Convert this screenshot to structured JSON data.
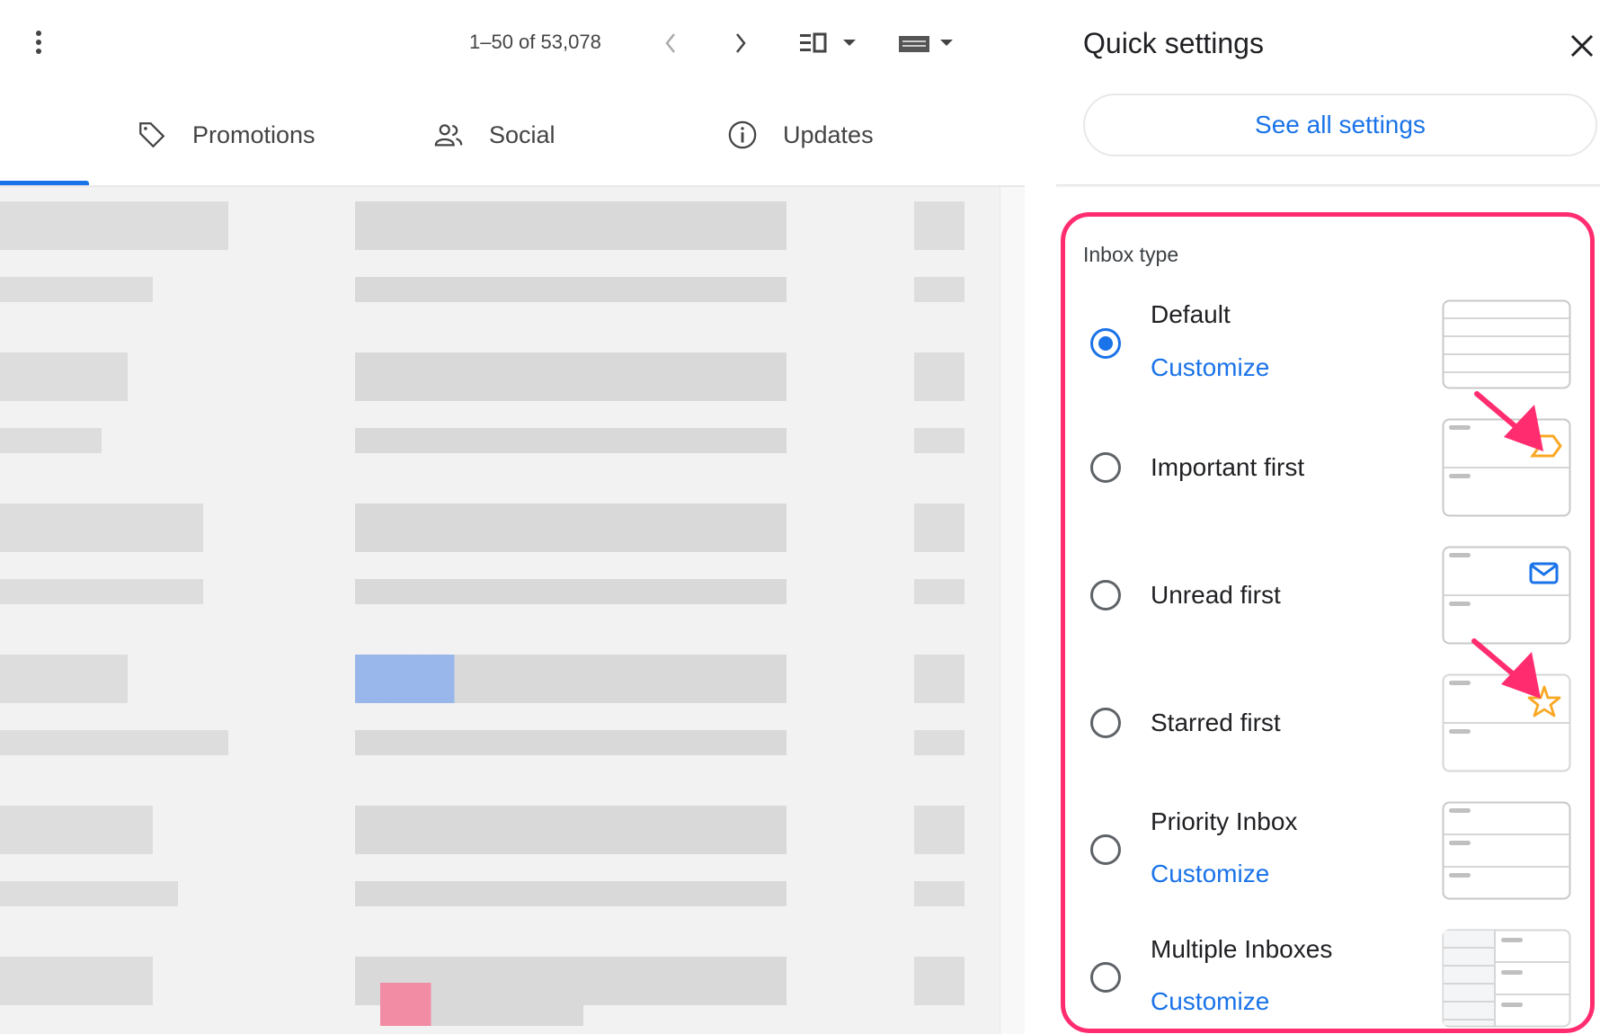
{
  "toolbar": {
    "pagination": "1–50 of 53,078",
    "icons": [
      "more-vert-icon",
      "chevron-left-icon",
      "chevron-right-icon",
      "split-pane-icon",
      "keyboard-icon"
    ]
  },
  "tabs": [
    {
      "label": "Promotions",
      "icon": "tag-icon"
    },
    {
      "label": "Social",
      "icon": "people-icon"
    },
    {
      "label": "Updates",
      "icon": "info-icon"
    }
  ],
  "quick_settings": {
    "title": "Quick settings",
    "see_all": "See all settings",
    "section_title": "Inbox type",
    "highlight_color": "#ff2d6f",
    "accent_color": "#1a73e8",
    "options": [
      {
        "label": "Default",
        "selected": true,
        "customize": "Customize"
      },
      {
        "label": "Important first",
        "selected": false
      },
      {
        "label": "Unread first",
        "selected": false
      },
      {
        "label": "Starred first",
        "selected": false
      },
      {
        "label": "Priority Inbox",
        "selected": false,
        "customize": "Customize"
      },
      {
        "label": "Multiple Inboxes",
        "selected": false,
        "customize": "Customize"
      }
    ]
  }
}
